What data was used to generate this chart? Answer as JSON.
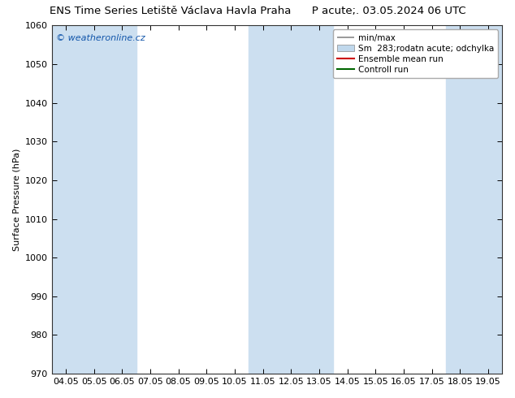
{
  "title_left": "ENS Time Series Letiště Václava Havla Praha",
  "title_right": "P acute;. 03.05.2024 06 UTC",
  "ylabel": "Surface Pressure (hPa)",
  "ylim": [
    970,
    1060
  ],
  "yticks": [
    970,
    980,
    990,
    1000,
    1010,
    1020,
    1030,
    1040,
    1050,
    1060
  ],
  "xlabels": [
    "04.05",
    "05.05",
    "06.05",
    "07.05",
    "08.05",
    "09.05",
    "10.05",
    "11.05",
    "12.05",
    "13.05",
    "14.05",
    "15.05",
    "16.05",
    "17.05",
    "18.05",
    "19.05"
  ],
  "shaded_x_starts": [
    0,
    1,
    2,
    7,
    8,
    9,
    14,
    15
  ],
  "band_color": "#ccdff0",
  "background_color": "#ffffff",
  "watermark": "© weatheronline.cz",
  "legend_min_max_label": "min/max",
  "legend_spread_label": "Sm  283;rodatn acute; odchylka",
  "legend_mean_label": "Ensemble mean run",
  "legend_control_label": "Controll run",
  "legend_mean_color": "#cc0000",
  "legend_control_color": "#006600",
  "legend_minmax_color": "#888888",
  "legend_spread_color": "#c0d8ec",
  "title_fontsize": 9.5,
  "axis_label_fontsize": 8,
  "tick_fontsize": 8
}
